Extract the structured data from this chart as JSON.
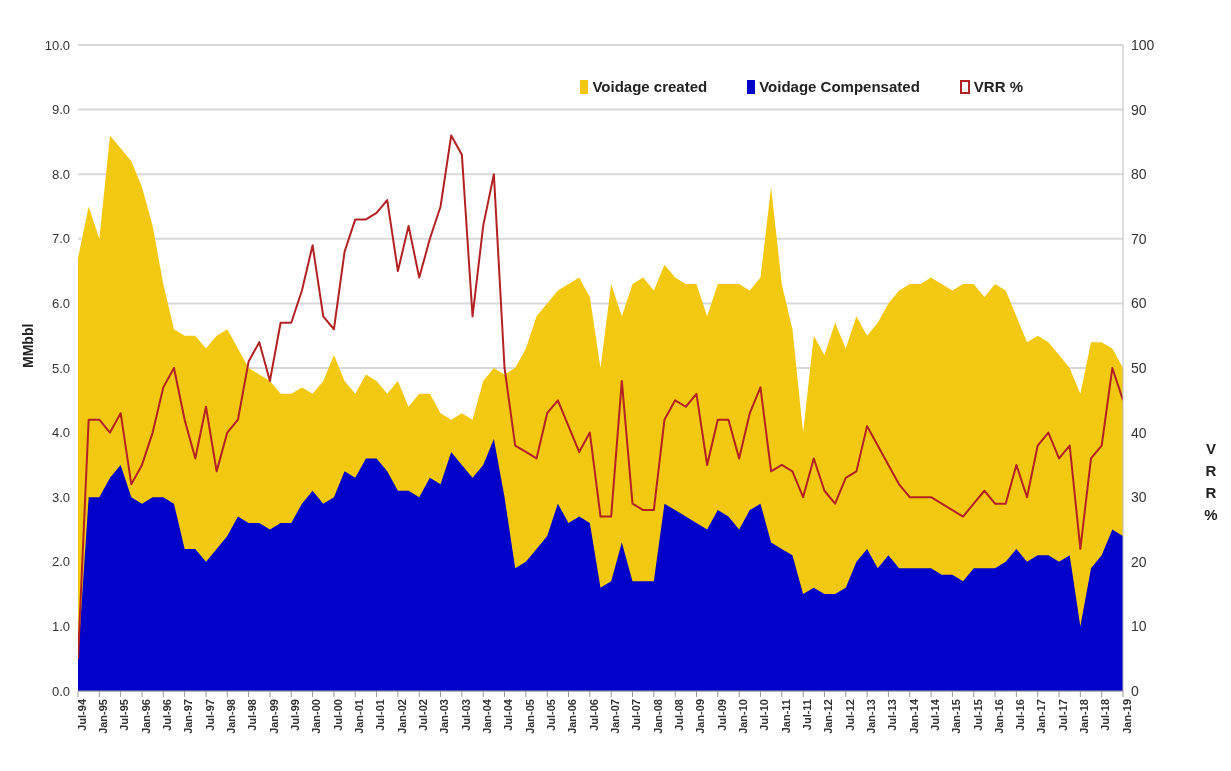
{
  "chart_data": {
    "type": "area",
    "ylabel": "MMbbl",
    "y2label": "VRR %",
    "x": [
      "1994-07",
      "1994-10",
      "1995-01",
      "1995-04",
      "1995-07",
      "1995-10",
      "1996-01",
      "1996-04",
      "1996-07",
      "1996-10",
      "1997-01",
      "1997-04",
      "1997-07",
      "1997-10",
      "1998-01",
      "1998-04",
      "1998-07",
      "1998-10",
      "1999-01",
      "1999-04",
      "1999-07",
      "1999-10",
      "2000-01",
      "2000-04",
      "2000-07",
      "2000-10",
      "2001-01",
      "2001-04",
      "2001-07",
      "2001-10",
      "2002-01",
      "2002-04",
      "2002-07",
      "2002-10",
      "2003-01",
      "2003-04",
      "2003-07",
      "2003-10",
      "2004-01",
      "2004-04",
      "2004-07",
      "2004-10",
      "2005-01",
      "2005-04",
      "2005-07",
      "2005-10",
      "2006-01",
      "2006-04",
      "2006-07",
      "2006-10",
      "2007-01",
      "2007-04",
      "2007-07",
      "2007-10",
      "2008-01",
      "2008-04",
      "2008-07",
      "2008-10",
      "2009-01",
      "2009-04",
      "2009-07",
      "2009-10",
      "2010-01",
      "2010-04",
      "2010-07",
      "2010-10",
      "2011-01",
      "2011-04",
      "2011-07",
      "2011-10",
      "2012-01",
      "2012-04",
      "2012-07",
      "2012-10",
      "2013-01",
      "2013-04",
      "2013-07",
      "2013-10",
      "2014-01",
      "2014-04",
      "2014-07",
      "2014-10",
      "2015-01",
      "2015-04",
      "2015-07",
      "2015-10",
      "2016-01",
      "2016-04",
      "2016-07",
      "2016-10",
      "2017-01",
      "2017-04",
      "2017-07",
      "2017-10",
      "2018-01",
      "2018-04",
      "2018-07",
      "2018-10",
      "2019-01"
    ],
    "series": [
      {
        "name": "Voidage created",
        "color": "#f2c811",
        "values": [
          6.7,
          7.5,
          7.0,
          8.6,
          8.4,
          8.2,
          7.8,
          7.2,
          6.3,
          5.6,
          5.5,
          5.5,
          5.3,
          5.5,
          5.6,
          5.3,
          5.0,
          4.9,
          4.8,
          4.6,
          4.6,
          4.7,
          4.6,
          4.8,
          5.2,
          4.8,
          4.6,
          4.9,
          4.8,
          4.6,
          4.8,
          4.4,
          4.6,
          4.6,
          4.3,
          4.2,
          4.3,
          4.2,
          4.8,
          5.0,
          4.9,
          5.0,
          5.3,
          5.8,
          6.0,
          6.2,
          6.3,
          6.4,
          6.1,
          5.0,
          6.3,
          5.8,
          6.3,
          6.4,
          6.2,
          6.6,
          6.4,
          6.3,
          6.3,
          5.8,
          6.3,
          6.3,
          6.3,
          6.2,
          6.4,
          7.8,
          6.3,
          5.6,
          4.0,
          5.5,
          5.2,
          5.7,
          5.3,
          5.8,
          5.5,
          5.7,
          6.0,
          6.2,
          6.3,
          6.3,
          6.4,
          6.3,
          6.2,
          6.3,
          6.3,
          6.1,
          6.3,
          6.2,
          5.8,
          5.4,
          5.5,
          5.4,
          5.2,
          5.0,
          4.6,
          5.4,
          5.4,
          5.3,
          5.0
        ]
      },
      {
        "name": "Voidage Compensated",
        "color": "#0000c8",
        "values": [
          0.5,
          3.0,
          3.0,
          3.3,
          3.5,
          3.0,
          2.9,
          3.0,
          3.0,
          2.9,
          2.2,
          2.2,
          2.0,
          2.2,
          2.4,
          2.7,
          2.6,
          2.6,
          2.5,
          2.6,
          2.6,
          2.9,
          3.1,
          2.9,
          3.0,
          3.4,
          3.3,
          3.6,
          3.6,
          3.4,
          3.1,
          3.1,
          3.0,
          3.3,
          3.2,
          3.7,
          3.5,
          3.3,
          3.5,
          3.9,
          3.0,
          1.9,
          2.0,
          2.2,
          2.4,
          2.9,
          2.6,
          2.7,
          2.6,
          1.6,
          1.7,
          2.3,
          1.7,
          1.7,
          1.7,
          2.9,
          2.8,
          2.7,
          2.6,
          2.5,
          2.8,
          2.7,
          2.5,
          2.8,
          2.9,
          2.3,
          2.2,
          2.1,
          1.5,
          1.6,
          1.5,
          1.5,
          1.6,
          2.0,
          2.2,
          1.9,
          2.1,
          1.9,
          1.9,
          1.9,
          1.9,
          1.8,
          1.8,
          1.7,
          1.9,
          1.9,
          1.9,
          2.0,
          2.2,
          2.0,
          2.1,
          2.1,
          2.0,
          2.1,
          1.0,
          1.9,
          2.1,
          2.5,
          2.4
        ]
      },
      {
        "name": "VRR %",
        "type": "line",
        "axis": "y2",
        "color": "#b22222",
        "values": [
          5,
          42,
          42,
          40,
          43,
          32,
          35,
          40,
          47,
          50,
          42,
          36,
          44,
          34,
          40,
          42,
          51,
          54,
          48,
          57,
          57,
          62,
          69,
          58,
          56,
          68,
          73,
          73,
          74,
          76,
          65,
          72,
          64,
          70,
          75,
          86,
          83,
          58,
          72,
          80,
          50,
          38,
          37,
          36,
          43,
          45,
          41,
          37,
          40,
          27,
          27,
          48,
          29,
          28,
          28,
          42,
          45,
          44,
          46,
          35,
          42,
          42,
          36,
          43,
          47,
          34,
          35,
          34,
          30,
          36,
          31,
          29,
          33,
          34,
          41,
          38,
          35,
          32,
          30,
          30,
          30,
          29,
          28,
          27,
          29,
          31,
          29,
          29,
          35,
          30,
          38,
          40,
          36,
          38,
          22,
          36,
          38,
          50,
          45
        ]
      }
    ],
    "xlim": [
      "1994-07",
      "2019-01"
    ],
    "xticks": [
      {
        "value": "1994-07",
        "label": "Jul-94"
      },
      {
        "value": "1995-01",
        "label": "Jan-95"
      },
      {
        "value": "1995-07",
        "label": "Jul-95"
      },
      {
        "value": "1996-01",
        "label": "Jan-96"
      },
      {
        "value": "1996-07",
        "label": "Jul-96"
      },
      {
        "value": "1997-01",
        "label": "Jan-97"
      },
      {
        "value": "1997-07",
        "label": "Jul-97"
      },
      {
        "value": "1998-01",
        "label": "Jan-98"
      },
      {
        "value": "1998-07",
        "label": "Jul-98"
      },
      {
        "value": "1999-01",
        "label": "Jan-99"
      },
      {
        "value": "1999-07",
        "label": "Jul-99"
      },
      {
        "value": "2000-01",
        "label": "Jan-00"
      },
      {
        "value": "2000-07",
        "label": "Jul-00"
      },
      {
        "value": "2001-01",
        "label": "Jan-01"
      },
      {
        "value": "2001-07",
        "label": "Jul-01"
      },
      {
        "value": "2002-01",
        "label": "Jan-02"
      },
      {
        "value": "2002-07",
        "label": "Jul-02"
      },
      {
        "value": "2003-01",
        "label": "Jan-03"
      },
      {
        "value": "2003-07",
        "label": "Jul-03"
      },
      {
        "value": "2004-01",
        "label": "Jan-04"
      },
      {
        "value": "2004-07",
        "label": "Jul-04"
      },
      {
        "value": "2005-01",
        "label": "Jan-05"
      },
      {
        "value": "2005-07",
        "label": "Jul-05"
      },
      {
        "value": "2006-01",
        "label": "Jan-06"
      },
      {
        "value": "2006-07",
        "label": "Jul-06"
      },
      {
        "value": "2007-01",
        "label": "Jan-07"
      },
      {
        "value": "2007-07",
        "label": "Jul-07"
      },
      {
        "value": "2008-01",
        "label": "Jan-08"
      },
      {
        "value": "2008-07",
        "label": "Jul-08"
      },
      {
        "value": "2009-01",
        "label": "Jan-09"
      },
      {
        "value": "2009-07",
        "label": "Jul-09"
      },
      {
        "value": "2010-01",
        "label": "Jan-10"
      },
      {
        "value": "2010-07",
        "label": "Jul-10"
      },
      {
        "value": "2011-01",
        "label": "Jan-11"
      },
      {
        "value": "2011-07",
        "label": "Jul-11"
      },
      {
        "value": "2012-01",
        "label": "Jan-12"
      },
      {
        "value": "2012-07",
        "label": "Jul-12"
      },
      {
        "value": "2013-01",
        "label": "Jan-13"
      },
      {
        "value": "2013-07",
        "label": "Jul-13"
      },
      {
        "value": "2014-01",
        "label": "Jan-14"
      },
      {
        "value": "2014-07",
        "label": "Jul-14"
      },
      {
        "value": "2015-01",
        "label": "Jan-15"
      },
      {
        "value": "2015-07",
        "label": "Jul-15"
      },
      {
        "value": "2016-01",
        "label": "Jan-16"
      },
      {
        "value": "2016-07",
        "label": "Jul-16"
      },
      {
        "value": "2017-01",
        "label": "Jan-17"
      },
      {
        "value": "2017-07",
        "label": "Jul-17"
      },
      {
        "value": "2018-01",
        "label": "Jan-18"
      },
      {
        "value": "2018-07",
        "label": "Jul-18"
      },
      {
        "value": "2019-01",
        "label": "Jan-19"
      }
    ],
    "ylim": [
      0,
      10
    ],
    "yticks": [
      {
        "value": 0,
        "label": "0.0"
      },
      {
        "value": 1,
        "label": "1.0"
      },
      {
        "value": 2,
        "label": "2.0"
      },
      {
        "value": 3,
        "label": "3.0"
      },
      {
        "value": 4,
        "label": "4.0"
      },
      {
        "value": 5,
        "label": "5.0"
      },
      {
        "value": 6,
        "label": "6.0"
      },
      {
        "value": 7,
        "label": "7.0"
      },
      {
        "value": 8,
        "label": "8.0"
      },
      {
        "value": 9,
        "label": "9.0"
      },
      {
        "value": 10,
        "label": "10.0"
      }
    ],
    "y2lim": [
      0,
      100
    ],
    "y2ticks": [
      0,
      10,
      20,
      30,
      40,
      50,
      60,
      70,
      80,
      90,
      100
    ],
    "grid": "y",
    "legend": "top right",
    "marker": "none",
    "line_style": "solid"
  }
}
